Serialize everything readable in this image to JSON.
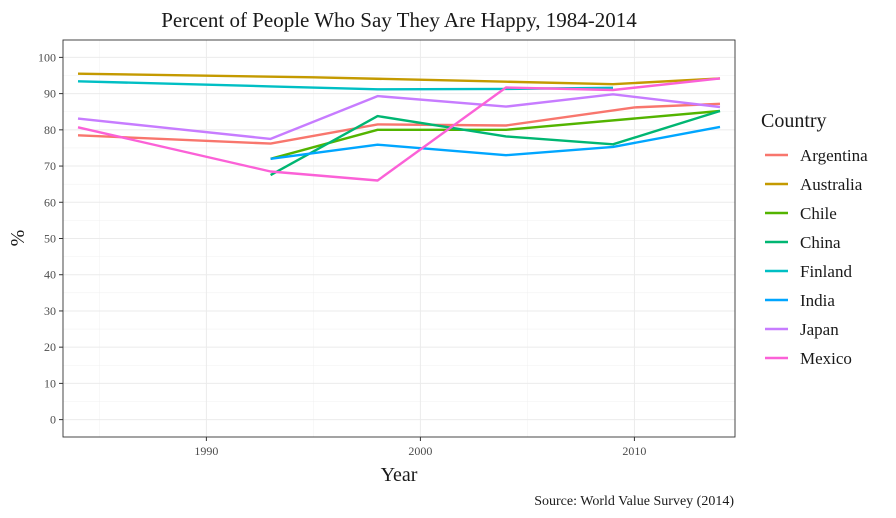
{
  "chart_data": {
    "type": "line",
    "title": "Percent of People Who Say They Are Happy, 1984-2014",
    "xlabel": "Year",
    "ylabel": "%",
    "caption": "Source: World Value Survey (2014)",
    "xlim": [
      1983.3,
      2014.7
    ],
    "ylim": [
      -4.8,
      104.8
    ],
    "x_ticks": [
      1990,
      2000,
      2010
    ],
    "y_ticks": [
      0,
      10,
      20,
      30,
      40,
      50,
      60,
      70,
      80,
      90,
      100
    ],
    "grid": true,
    "legend_title": "Country",
    "legend_position": "right",
    "series": [
      {
        "name": "Argentina",
        "color": "#F8766D",
        "x": [
          1984,
          1993,
          1998,
          2004,
          2010,
          2014
        ],
        "y": [
          78.5,
          76.2,
          81.5,
          81.2,
          86.2,
          87.2
        ]
      },
      {
        "name": "Australia",
        "color": "#C49A00",
        "x": [
          1984,
          1995,
          2004,
          2009,
          2014
        ],
        "y": [
          95.5,
          94.5,
          93.3,
          92.6,
          94.2
        ]
      },
      {
        "name": "Chile",
        "color": "#53B400",
        "x": [
          1993,
          1998,
          2004,
          2014
        ],
        "y": [
          72.0,
          80.0,
          80.0,
          85.2
        ]
      },
      {
        "name": "China",
        "color": "#00B672",
        "x": [
          1993,
          1998,
          2004,
          2009,
          2014
        ],
        "y": [
          67.5,
          83.8,
          78.2,
          76.0,
          85.2
        ]
      },
      {
        "name": "Finland",
        "color": "#00BFC4",
        "x": [
          1984,
          1993,
          1998,
          2004,
          2009
        ],
        "y": [
          93.4,
          92.0,
          91.2,
          91.3,
          91.6
        ]
      },
      {
        "name": "India",
        "color": "#00A6FF",
        "x": [
          1993,
          1998,
          2004,
          2009,
          2014
        ],
        "y": [
          72.0,
          75.9,
          73.0,
          75.3,
          80.8
        ]
      },
      {
        "name": "Japan",
        "color": "#C77CFF",
        "x": [
          1984,
          1993,
          1998,
          2004,
          2009,
          2014
        ],
        "y": [
          83.1,
          77.5,
          89.3,
          86.4,
          89.8,
          86.3
        ]
      },
      {
        "name": "Mexico",
        "color": "#FB61D7",
        "x": [
          1984,
          1993,
          1998,
          2004,
          2009,
          2014
        ],
        "y": [
          80.7,
          68.5,
          66.0,
          91.7,
          91.0,
          94.2
        ]
      }
    ]
  }
}
